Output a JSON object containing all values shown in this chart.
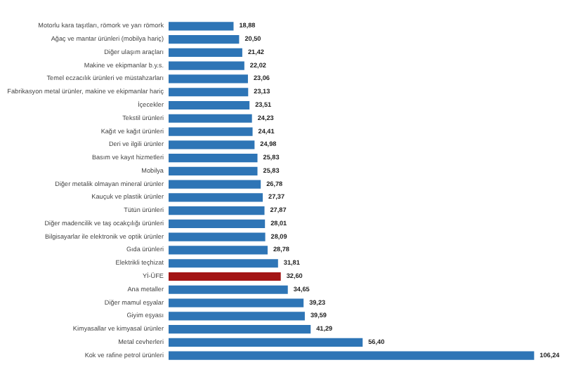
{
  "chart_data": {
    "type": "bar",
    "orientation": "horizontal",
    "categories": [
      "Motorlu kara taşıtları, römork ve yarı römork",
      "Ağaç ve mantar ürünleri (mobilya hariç)",
      "Diğer ulaşım araçları",
      "Makine ve ekipmanlar b.y.s.",
      "Temel eczacılık ürünleri ve müstahzarları",
      "Fabrikasyon metal ürünler, makine ve ekipmanlar hariç",
      "İçecekler",
      "Tekstil ürünleri",
      "Kağıt ve kağıt ürünleri",
      "Deri ve ilgili ürünler",
      "Basım ve kayıt hizmetleri",
      "Mobilya",
      "Diğer metalik olmayan mineral ürünler",
      "Kauçuk ve plastik ürünler",
      "Tütün ürünleri",
      "Diğer madencilik ve taş ocakçılığı ürünleri",
      "Bilgisayarlar ile elektronik ve optik ürünler",
      "Gıda ürünleri",
      "Elektrikli teçhizat",
      "Yİ-ÜFE",
      "Ana metaller",
      "Diğer mamul eşyalar",
      "Giyim eşyası",
      "Kimyasallar ve kimyasal ürünler",
      "Metal cevherleri",
      "Kok ve rafine petrol ürünleri"
    ],
    "values": [
      18.88,
      20.5,
      21.42,
      22.02,
      23.06,
      23.13,
      23.51,
      24.23,
      24.41,
      24.98,
      25.83,
      25.83,
      26.78,
      27.37,
      27.87,
      28.01,
      28.09,
      28.78,
      31.81,
      32.6,
      34.65,
      39.23,
      39.59,
      41.29,
      56.4,
      106.24
    ],
    "value_labels": [
      "18,88",
      "20,50",
      "21,42",
      "22,02",
      "23,06",
      "23,13",
      "23,51",
      "24,23",
      "24,41",
      "24,98",
      "25,83",
      "25,83",
      "26,78",
      "27,37",
      "27,87",
      "28,01",
      "28,09",
      "28,78",
      "31,81",
      "32,60",
      "34,65",
      "39,23",
      "39,59",
      "41,29",
      "56,40",
      "106,24"
    ],
    "colors": [
      "#2e75b6",
      "#2e75b6",
      "#2e75b6",
      "#2e75b6",
      "#2e75b6",
      "#2e75b6",
      "#2e75b6",
      "#2e75b6",
      "#2e75b6",
      "#2e75b6",
      "#2e75b6",
      "#2e75b6",
      "#2e75b6",
      "#2e75b6",
      "#2e75b6",
      "#2e75b6",
      "#2e75b6",
      "#2e75b6",
      "#2e75b6",
      "#a31515",
      "#2e75b6",
      "#2e75b6",
      "#2e75b6",
      "#2e75b6",
      "#2e75b6",
      "#2e75b6"
    ],
    "grid": false
  }
}
